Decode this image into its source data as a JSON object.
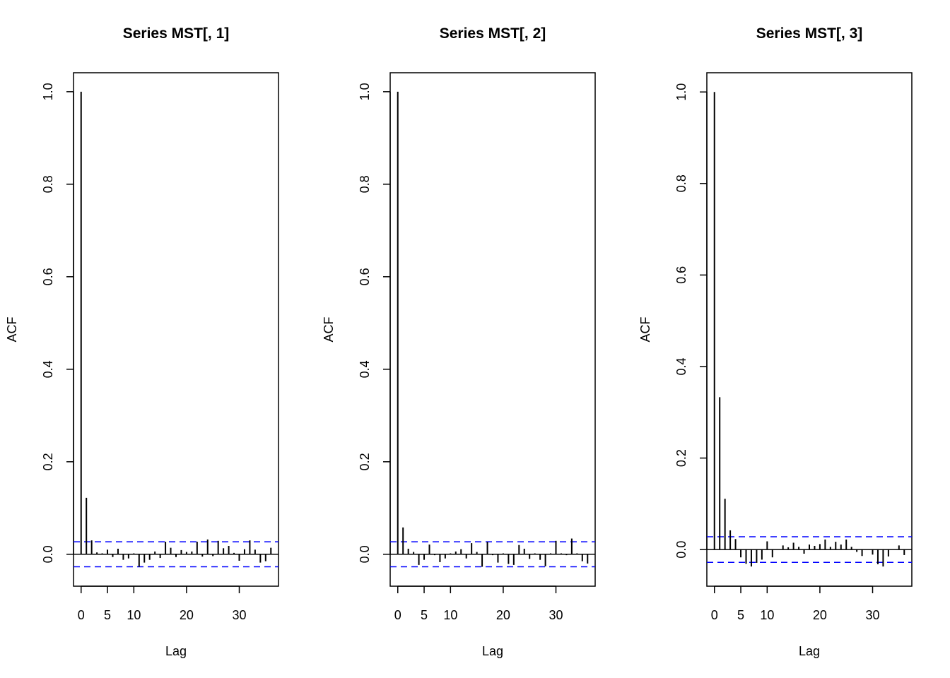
{
  "chart_data": [
    {
      "type": "bar",
      "title": "Series  MST[, 1]",
      "x_label": "Lag",
      "y_label": "ACF",
      "x": [
        0,
        1,
        2,
        3,
        4,
        5,
        6,
        7,
        8,
        9,
        10,
        11,
        12,
        13,
        14,
        15,
        16,
        17,
        18,
        19,
        20,
        21,
        22,
        23,
        24,
        25,
        26,
        27,
        28,
        29,
        30,
        31,
        32,
        33,
        34,
        35,
        36
      ],
      "values": [
        1.0,
        0.122,
        0.03,
        0.004,
        0.002,
        0.01,
        -0.006,
        0.012,
        -0.012,
        -0.009,
        0.002,
        -0.027,
        -0.018,
        -0.012,
        0.006,
        -0.008,
        0.027,
        0.014,
        -0.006,
        0.009,
        0.005,
        0.006,
        0.027,
        -0.005,
        0.032,
        -0.004,
        0.029,
        0.013,
        0.018,
        0.003,
        -0.014,
        0.011,
        0.03,
        0.01,
        -0.018,
        -0.015,
        0.014
      ],
      "color": "#000000",
      "xlim": [
        -1.44,
        37.44
      ],
      "ylim": [
        -0.069,
        1.041
      ],
      "xticks": [
        0,
        5,
        10,
        20,
        30
      ],
      "yticks": [
        {
          "value": 0,
          "label": "0.0"
        },
        0.2,
        0.4,
        0.6,
        0.8,
        {
          "value": 1,
          "label": "1.0"
        }
      ],
      "hlines": [
        0.027,
        -0.027
      ],
      "hline_color": "#0000ff"
    },
    {
      "type": "bar",
      "title": "Series  MST[, 2]",
      "x_label": "Lag",
      "y_label": "ACF",
      "x": [
        0,
        1,
        2,
        3,
        4,
        5,
        6,
        7,
        8,
        9,
        10,
        11,
        12,
        13,
        14,
        15,
        16,
        17,
        18,
        19,
        20,
        21,
        22,
        23,
        24,
        25,
        26,
        27,
        28,
        29,
        30,
        31,
        32,
        33,
        34,
        35,
        36
      ],
      "values": [
        1.0,
        0.058,
        0.012,
        0.005,
        -0.023,
        -0.012,
        0.021,
        -0.002,
        -0.017,
        -0.009,
        0.002,
        0.006,
        0.011,
        -0.009,
        0.024,
        0.005,
        -0.027,
        0.027,
        -0.002,
        -0.018,
        0.002,
        -0.021,
        -0.023,
        0.02,
        0.012,
        -0.01,
        0.002,
        -0.012,
        -0.026,
        0.002,
        0.029,
        0.002,
        -0.002,
        0.034,
        0.002,
        -0.015,
        -0.02
      ],
      "color": "#000000",
      "xlim": [
        -1.44,
        37.44
      ],
      "ylim": [
        -0.069,
        1.041
      ],
      "xticks": [
        0,
        5,
        10,
        20,
        30
      ],
      "yticks": [
        {
          "value": 0,
          "label": "0.0"
        },
        0.2,
        0.4,
        0.6,
        0.8,
        {
          "value": 1,
          "label": "1.0"
        }
      ],
      "hlines": [
        0.027,
        -0.027
      ],
      "hline_color": "#0000ff"
    },
    {
      "type": "bar",
      "title": "Series  MST[, 3]",
      "x_label": "Lag",
      "y_label": "ACF",
      "x": [
        0,
        1,
        2,
        3,
        4,
        5,
        6,
        7,
        8,
        9,
        10,
        11,
        12,
        13,
        14,
        15,
        16,
        17,
        18,
        19,
        20,
        21,
        22,
        23,
        24,
        25,
        26,
        27,
        28,
        29,
        30,
        31,
        32,
        33,
        34,
        35,
        36
      ],
      "values": [
        1.0,
        0.333,
        0.111,
        0.042,
        0.023,
        -0.017,
        -0.031,
        -0.037,
        -0.029,
        -0.022,
        0.018,
        -0.017,
        0,
        0.009,
        0.005,
        0.015,
        0.006,
        -0.009,
        0.011,
        0.008,
        0.012,
        0.022,
        0.006,
        0.017,
        0.011,
        0.022,
        0.006,
        -0.005,
        -0.014,
        0,
        -0.011,
        -0.032,
        -0.037,
        -0.015,
        0,
        0.009,
        -0.012
      ],
      "color": "#000000",
      "xlim": [
        -1.44,
        37.44
      ],
      "ylim": [
        -0.08,
        1.042
      ],
      "xticks": [
        0,
        5,
        10,
        20,
        30
      ],
      "yticks": [
        {
          "value": 0,
          "label": "0.0"
        },
        0.2,
        0.4,
        0.6,
        0.8,
        {
          "value": 1,
          "label": "1.0"
        }
      ],
      "hlines": [
        0.028,
        -0.028
      ],
      "hline_color": "#0000ff"
    }
  ]
}
